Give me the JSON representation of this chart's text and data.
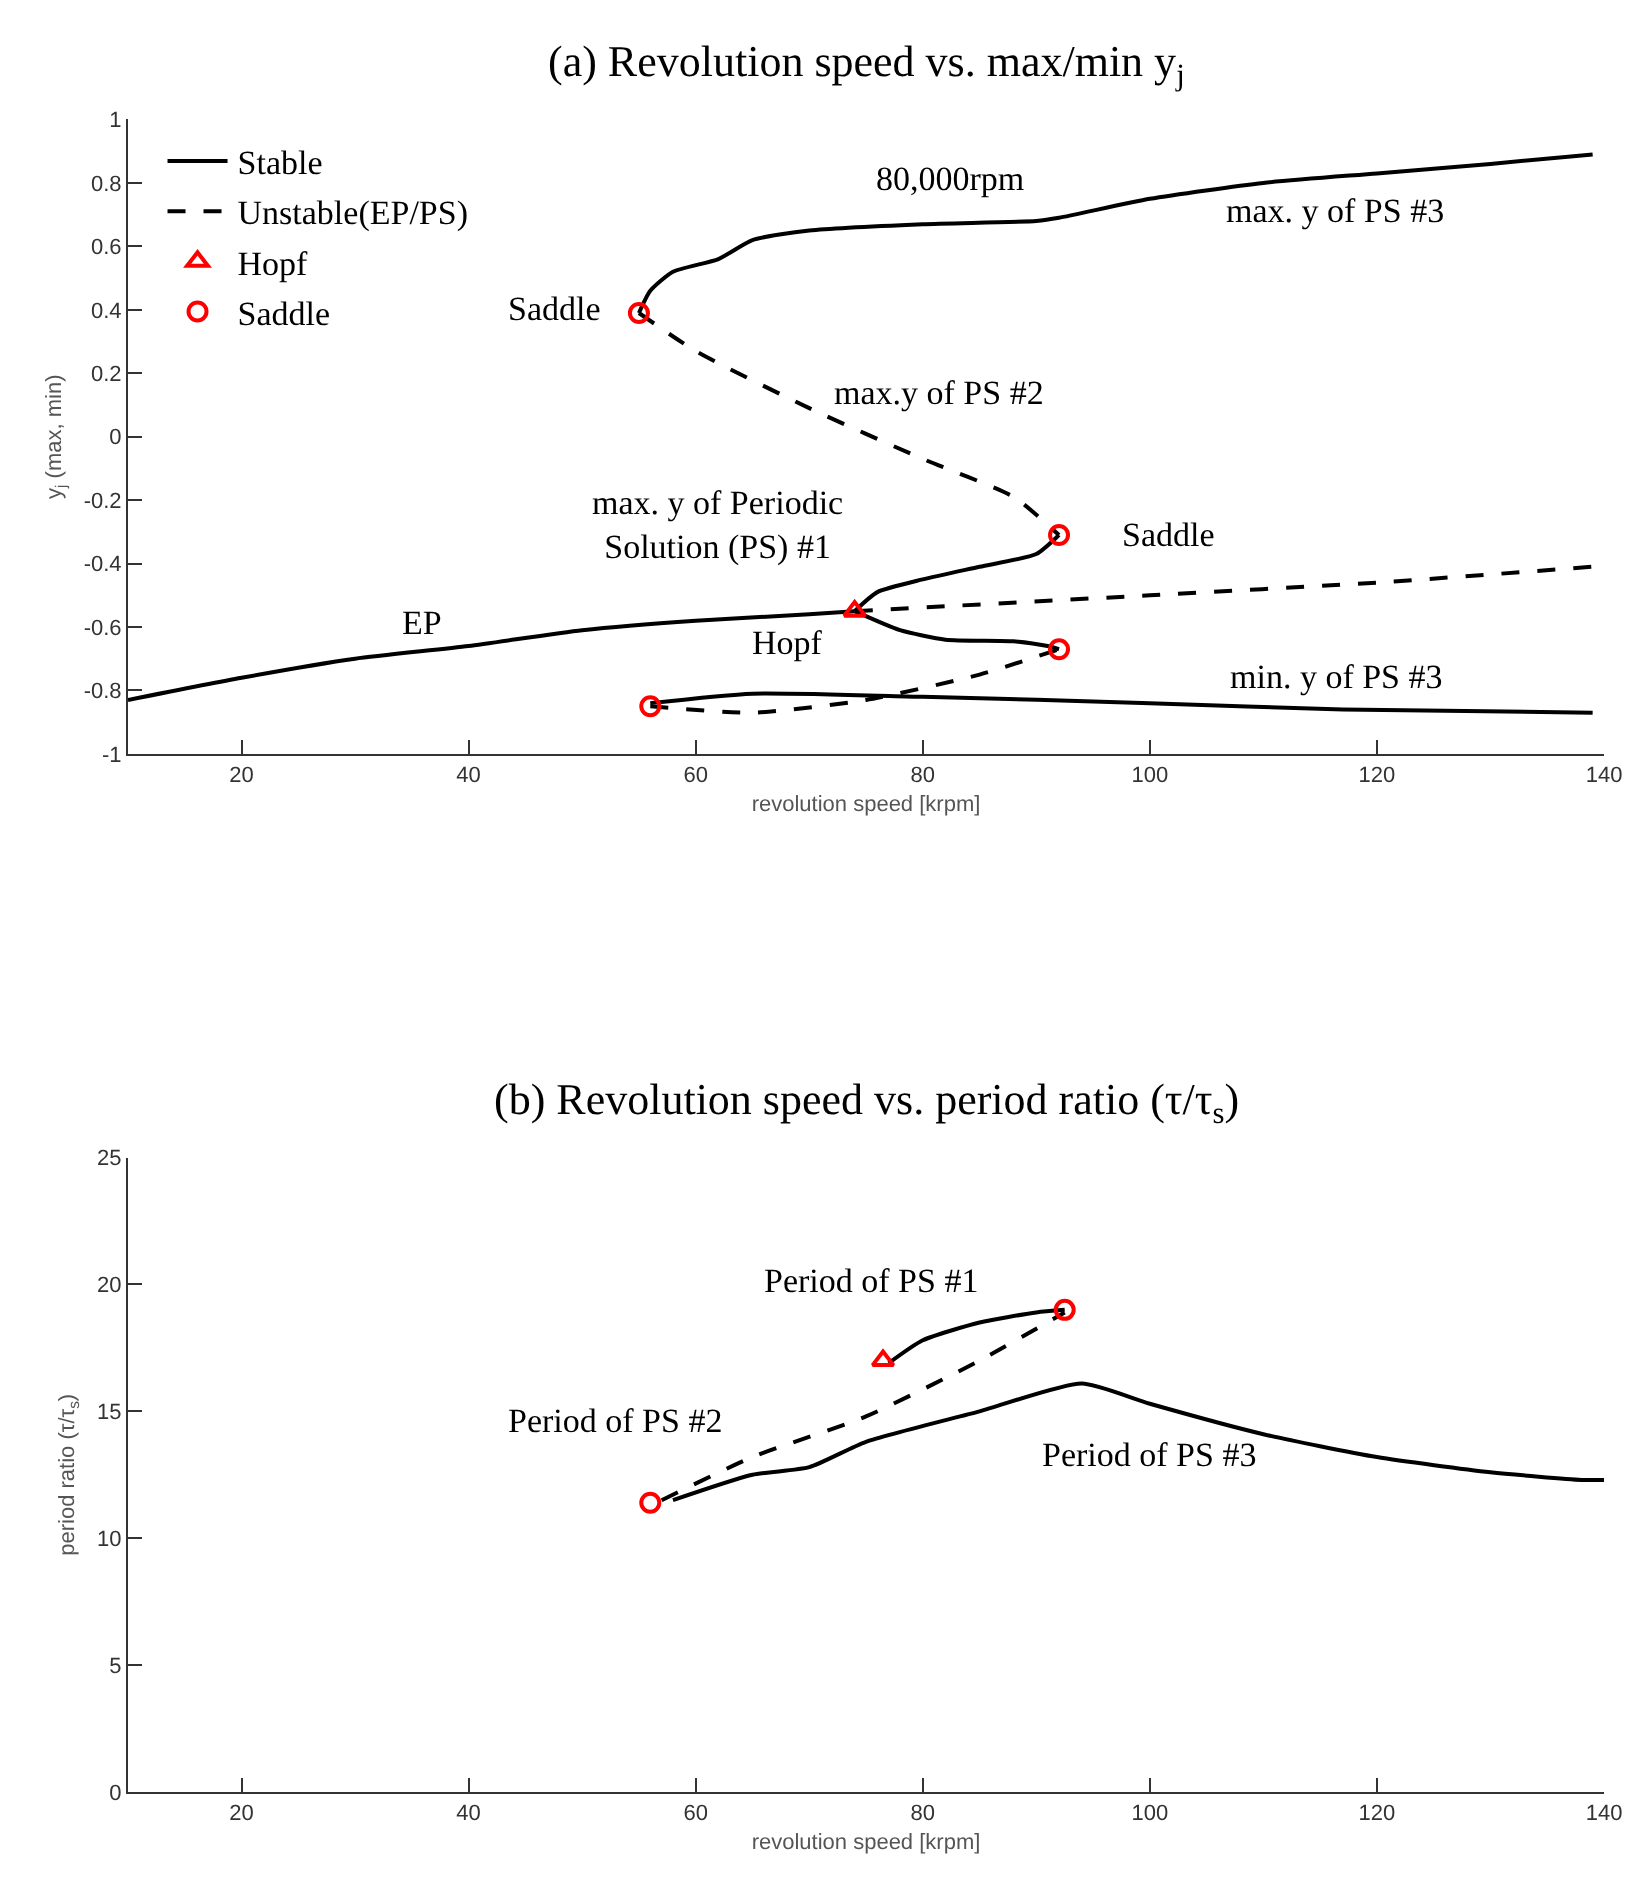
{
  "chart_data": [
    {
      "type": "line",
      "title": "(a) Revolution speed vs. max/min y$_{j}$",
      "xlabel": "revolution speed [krpm]",
      "ylabel": "y$_{j}$ (max, min)",
      "xlim": [
        10,
        140
      ],
      "xticks": [
        20,
        40,
        60,
        80,
        100,
        120,
        140
      ],
      "ylim": [
        -1,
        1
      ],
      "yticks": [
        -1,
        -0.8,
        -0.6,
        -0.4,
        -0.2,
        0,
        0.2,
        0.4,
        0.6,
        0.8,
        1
      ],
      "legend": "top left",
      "series": [
        {
          "name": "Stable",
          "color": "#000000",
          "line_style": "solid",
          "marker": "none",
          "x": [
            10,
            20,
            30,
            40,
            50,
            60,
            70,
            74
          ],
          "values": [
            -0.83,
            -0.76,
            -0.7,
            -0.66,
            -0.61,
            -0.58,
            -0.56,
            -0.55
          ]
        },
        {
          "name": "Unstable(EP/PS)",
          "color": "#000000",
          "line_style": "dashed",
          "marker": "none",
          "x": [
            74,
            100,
            120,
            139
          ],
          "values": [
            -0.55,
            -0.5,
            -0.46,
            -0.41
          ]
        },
        {
          "color": "#000000",
          "line_style": "solid",
          "marker": "none",
          "x": [
            74,
            76,
            80,
            85,
            90,
            92
          ],
          "values": [
            -0.55,
            -0.49,
            -0.45,
            -0.41,
            -0.37,
            -0.31
          ]
        },
        {
          "color": "#000000",
          "line_style": "solid",
          "marker": "none",
          "x": [
            74,
            78,
            82,
            88,
            91,
            92
          ],
          "values": [
            -0.55,
            -0.61,
            -0.64,
            -0.645,
            -0.66,
            -0.67
          ]
        },
        {
          "color": "#000000",
          "line_style": "dashed",
          "marker": "none",
          "x": [
            55,
            60,
            70,
            80,
            88,
            92
          ],
          "values": [
            0.39,
            0.27,
            0.09,
            -0.07,
            -0.19,
            -0.31
          ]
        },
        {
          "color": "#000000",
          "line_style": "dashed",
          "marker": "none",
          "x": [
            56,
            65,
            75,
            85,
            92
          ],
          "values": [
            -0.85,
            -0.87,
            -0.83,
            -0.75,
            -0.67
          ]
        },
        {
          "color": "#000000",
          "line_style": "solid",
          "marker": "none",
          "x": [
            55,
            56,
            58,
            62,
            65,
            70,
            80,
            90,
            92,
            100,
            110,
            120,
            130,
            139
          ],
          "values": [
            0.39,
            0.46,
            0.52,
            0.56,
            0.62,
            0.65,
            0.67,
            0.68,
            0.69,
            0.75,
            0.8,
            0.83,
            0.86,
            0.89
          ]
        },
        {
          "color": "#000000",
          "line_style": "solid",
          "marker": "none",
          "x": [
            56,
            65,
            80,
            100,
            117,
            139
          ],
          "values": [
            -0.84,
            -0.81,
            -0.82,
            -0.84,
            -0.86,
            -0.87
          ]
        },
        {
          "name": "Hopf",
          "type": "scatter",
          "color": "#ff0000",
          "marker": "triangle",
          "x": [
            74
          ],
          "values": [
            -0.55
          ]
        },
        {
          "name": "Saddle",
          "type": "scatter",
          "color": "#ff0000",
          "marker": "circle",
          "x": [
            55,
            92,
            92,
            56
          ],
          "values": [
            0.39,
            -0.31,
            -0.67,
            -0.85
          ]
        }
      ],
      "annotations": [
        "80,000rpm",
        "max. y of PS #3",
        "Saddle",
        "max.y of PS #2",
        "max. y of Periodic\nSolution (PS) #1",
        "Saddle",
        "EP",
        "Hopf",
        "min. y of PS #3"
      ]
    },
    {
      "type": "line",
      "title": "(b) Revolution speed vs. period ratio (τ/τ$_{s}$)",
      "xlabel": "revolution speed [krpm]",
      "ylabel": "period ratio (τ/τ$_{s}$)",
      "xlim": [
        10,
        140
      ],
      "xticks": [
        20,
        40,
        60,
        80,
        100,
        120,
        140
      ],
      "ylim": [
        0,
        25
      ],
      "yticks": [
        0,
        5,
        10,
        15,
        20,
        25
      ],
      "series": [
        {
          "color": "#000000",
          "line_style": "solid",
          "marker": "none",
          "x": [
            77,
            80,
            85,
            90,
            92.5
          ],
          "values": [
            16.9,
            17.8,
            18.5,
            18.9,
            19.0
          ]
        },
        {
          "color": "#000000",
          "line_style": "dashed",
          "marker": "none",
          "x": [
            57,
            65,
            75,
            85,
            92.5
          ],
          "values": [
            11.5,
            13.2,
            14.8,
            17.0,
            18.9
          ]
        },
        {
          "color": "#000000",
          "line_style": "solid",
          "marker": "none",
          "x": [
            58,
            65,
            70,
            75,
            85,
            94,
            100,
            110,
            120,
            130,
            138,
            140
          ],
          "values": [
            11.5,
            12.5,
            12.8,
            13.8,
            15.0,
            16.1,
            15.3,
            14.1,
            13.2,
            12.6,
            12.3,
            12.3
          ]
        },
        {
          "type": "scatter",
          "color": "#ff0000",
          "marker": "triangle",
          "x": [
            76.5
          ],
          "values": [
            17
          ]
        },
        {
          "type": "scatter",
          "color": "#ff0000",
          "marker": "circle",
          "x": [
            56,
            92.5
          ],
          "values": [
            11.4,
            19.0
          ]
        }
      ],
      "annotations": [
        "Period of PS #1",
        "Period of PS #2",
        "Period of PS #3"
      ]
    }
  ]
}
